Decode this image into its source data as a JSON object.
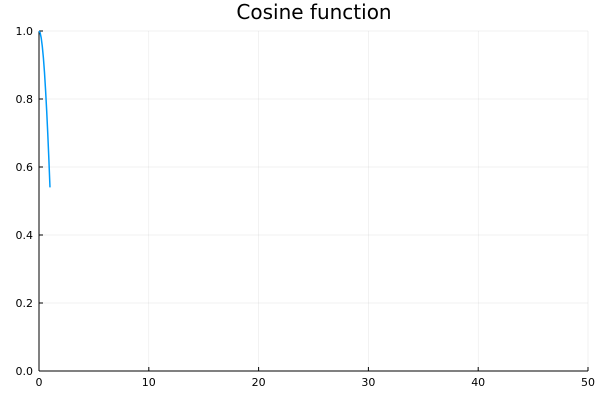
{
  "chart_data": {
    "type": "line",
    "title": "Cosine function",
    "xlabel": "",
    "ylabel": "",
    "xlim": [
      0,
      50
    ],
    "ylim": [
      0,
      1
    ],
    "x_ticks": [
      0,
      10,
      20,
      30,
      40,
      50
    ],
    "y_ticks": [
      0.0,
      0.2,
      0.4,
      0.6,
      0.8,
      1.0
    ],
    "x_tick_labels": [
      "0",
      "10",
      "20",
      "30",
      "40",
      "50"
    ],
    "y_tick_labels": [
      "0.0",
      "0.2",
      "0.4",
      "0.6",
      "0.8",
      "1.0"
    ],
    "grid": true,
    "legend": "none",
    "series": [
      {
        "color": "#009af9",
        "x": [
          0.0,
          0.1,
          0.2,
          0.3,
          0.4,
          0.5,
          0.6,
          0.7,
          0.8,
          0.9,
          1.0
        ],
        "y": [
          1.0,
          0.995,
          0.98,
          0.955,
          0.921,
          0.878,
          0.825,
          0.765,
          0.697,
          0.622,
          0.54
        ]
      }
    ]
  }
}
